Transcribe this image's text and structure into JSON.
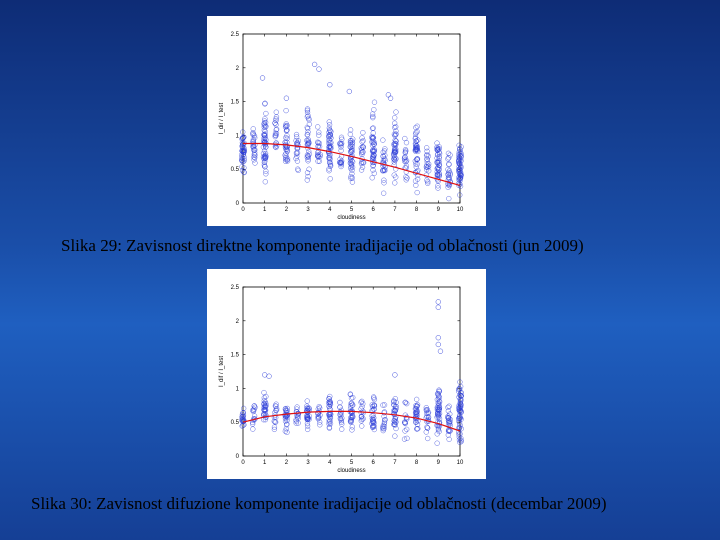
{
  "charts": [
    {
      "caption": "Slika 29: Zavisnost direktne komponente iradijacije od oblačnosti (jun 2009)"
    },
    {
      "caption": "Slika 30: Zavisnost difuzione komponente iradijacije od oblačnosti (decembar 2009)"
    }
  ],
  "chart_data": [
    {
      "type": "scatter",
      "title": "",
      "xlabel": "cloudiness",
      "ylabel": "I_dir / I_test",
      "xlim": [
        0,
        10
      ],
      "ylim": [
        0,
        2.5
      ],
      "xticks": [
        "0",
        "1",
        "2",
        "3",
        "4",
        "5",
        "6",
        "7",
        "8",
        "9",
        "10"
      ],
      "yticks": [
        "0",
        "0.5",
        "1",
        "1.5",
        "2",
        "2.5"
      ],
      "grid": false,
      "colors": {
        "points": "#2a3bd8",
        "fit": "#e01010"
      },
      "point_clusters": [
        {
          "x": 0,
          "y_min": 0.2,
          "y_max": 1.3,
          "n": 45
        },
        {
          "x": 0.5,
          "y_min": 0.5,
          "y_max": 1.2,
          "n": 25
        },
        {
          "x": 1,
          "y_min": 0.1,
          "y_max": 1.7,
          "n": 55
        },
        {
          "x": 1.5,
          "y_min": 0.6,
          "y_max": 1.4,
          "n": 20
        },
        {
          "x": 2,
          "y_min": 0.2,
          "y_max": 1.5,
          "n": 35
        },
        {
          "x": 2.5,
          "y_min": 0.3,
          "y_max": 1.2,
          "n": 20
        },
        {
          "x": 3,
          "y_min": 0.2,
          "y_max": 1.6,
          "n": 35
        },
        {
          "x": 3.5,
          "y_min": 0.4,
          "y_max": 1.3,
          "n": 20
        },
        {
          "x": 4,
          "y_min": 0.2,
          "y_max": 1.5,
          "n": 45
        },
        {
          "x": 4.5,
          "y_min": 0.3,
          "y_max": 1.2,
          "n": 20
        },
        {
          "x": 5,
          "y_min": 0.1,
          "y_max": 1.3,
          "n": 40
        },
        {
          "x": 5.5,
          "y_min": 0.2,
          "y_max": 1.2,
          "n": 20
        },
        {
          "x": 6,
          "y_min": 0.05,
          "y_max": 1.6,
          "n": 45
        },
        {
          "x": 6.5,
          "y_min": 0.1,
          "y_max": 1.2,
          "n": 25
        },
        {
          "x": 7,
          "y_min": 0.1,
          "y_max": 1.5,
          "n": 45
        },
        {
          "x": 7.5,
          "y_min": 0.1,
          "y_max": 1.1,
          "n": 20
        },
        {
          "x": 8,
          "y_min": 0.05,
          "y_max": 1.4,
          "n": 45
        },
        {
          "x": 8.5,
          "y_min": 0.05,
          "y_max": 1.0,
          "n": 20
        },
        {
          "x": 9,
          "y_min": 0.0,
          "y_max": 1.1,
          "n": 45
        },
        {
          "x": 9.5,
          "y_min": 0.0,
          "y_max": 0.9,
          "n": 25
        },
        {
          "x": 10,
          "y_min": 0.0,
          "y_max": 1.1,
          "n": 55
        }
      ],
      "outliers": [
        {
          "x": 3.3,
          "y": 2.05
        },
        {
          "x": 3.5,
          "y": 1.98
        },
        {
          "x": 4.0,
          "y": 1.75
        },
        {
          "x": 6.7,
          "y": 1.6
        },
        {
          "x": 6.8,
          "y": 1.55
        },
        {
          "x": 0.9,
          "y": 1.85
        },
        {
          "x": 4.9,
          "y": 1.65
        },
        {
          "x": 2.0,
          "y": 1.55
        }
      ],
      "fit_line": {
        "x": [
          0,
          1,
          2,
          3,
          4,
          5,
          6,
          7,
          8,
          9,
          10
        ],
        "y": [
          0.88,
          0.88,
          0.86,
          0.82,
          0.76,
          0.69,
          0.61,
          0.53,
          0.44,
          0.35,
          0.26
        ]
      }
    },
    {
      "type": "scatter",
      "title": "",
      "xlabel": "cloudiness",
      "ylabel": "I_dif / I_test",
      "xlim": [
        0,
        10
      ],
      "ylim": [
        0,
        2.5
      ],
      "xticks": [
        "0",
        "1",
        "2",
        "3",
        "4",
        "5",
        "6",
        "7",
        "8",
        "9",
        "10"
      ],
      "yticks": [
        "0",
        "0.5",
        "1",
        "1.5",
        "2",
        "2.5"
      ],
      "grid": false,
      "colors": {
        "points": "#2a3bd8",
        "fit": "#e01010"
      },
      "point_clusters": [
        {
          "x": 0,
          "y_min": 0.3,
          "y_max": 0.8,
          "n": 20
        },
        {
          "x": 0.5,
          "y_min": 0.3,
          "y_max": 0.9,
          "n": 15
        },
        {
          "x": 1,
          "y_min": 0.4,
          "y_max": 1.0,
          "n": 30
        },
        {
          "x": 1.5,
          "y_min": 0.3,
          "y_max": 0.9,
          "n": 15
        },
        {
          "x": 2,
          "y_min": 0.3,
          "y_max": 0.9,
          "n": 25
        },
        {
          "x": 2.5,
          "y_min": 0.3,
          "y_max": 0.9,
          "n": 15
        },
        {
          "x": 3,
          "y_min": 0.3,
          "y_max": 0.9,
          "n": 30
        },
        {
          "x": 3.5,
          "y_min": 0.3,
          "y_max": 0.9,
          "n": 15
        },
        {
          "x": 4,
          "y_min": 0.3,
          "y_max": 1.0,
          "n": 30
        },
        {
          "x": 4.5,
          "y_min": 0.3,
          "y_max": 0.9,
          "n": 15
        },
        {
          "x": 5,
          "y_min": 0.3,
          "y_max": 1.0,
          "n": 30
        },
        {
          "x": 5.5,
          "y_min": 0.3,
          "y_max": 0.9,
          "n": 15
        },
        {
          "x": 6,
          "y_min": 0.2,
          "y_max": 1.0,
          "n": 30
        },
        {
          "x": 6.5,
          "y_min": 0.2,
          "y_max": 0.9,
          "n": 15
        },
        {
          "x": 7,
          "y_min": 0.2,
          "y_max": 0.9,
          "n": 30
        },
        {
          "x": 7.5,
          "y_min": 0.2,
          "y_max": 0.9,
          "n": 15
        },
        {
          "x": 8,
          "y_min": 0.2,
          "y_max": 0.9,
          "n": 30
        },
        {
          "x": 8.5,
          "y_min": 0.2,
          "y_max": 0.9,
          "n": 20
        },
        {
          "x": 9,
          "y_min": 0.1,
          "y_max": 1.3,
          "n": 50
        },
        {
          "x": 9.5,
          "y_min": 0.1,
          "y_max": 1.0,
          "n": 25
        },
        {
          "x": 10,
          "y_min": 0.0,
          "y_max": 1.3,
          "n": 60
        }
      ],
      "outliers": [
        {
          "x": 9.0,
          "y": 2.28
        },
        {
          "x": 9.0,
          "y": 2.2
        },
        {
          "x": 9.0,
          "y": 1.75
        },
        {
          "x": 9.0,
          "y": 1.65
        },
        {
          "x": 9.1,
          "y": 1.55
        },
        {
          "x": 1.2,
          "y": 1.18
        },
        {
          "x": 1.0,
          "y": 1.2
        },
        {
          "x": 7.0,
          "y": 1.2
        }
      ],
      "fit_line": {
        "x": [
          0,
          1,
          2,
          3,
          4,
          5,
          6,
          7,
          8,
          9,
          10
        ],
        "y": [
          0.5,
          0.58,
          0.62,
          0.65,
          0.66,
          0.66,
          0.64,
          0.61,
          0.56,
          0.48,
          0.37
        ]
      }
    }
  ]
}
